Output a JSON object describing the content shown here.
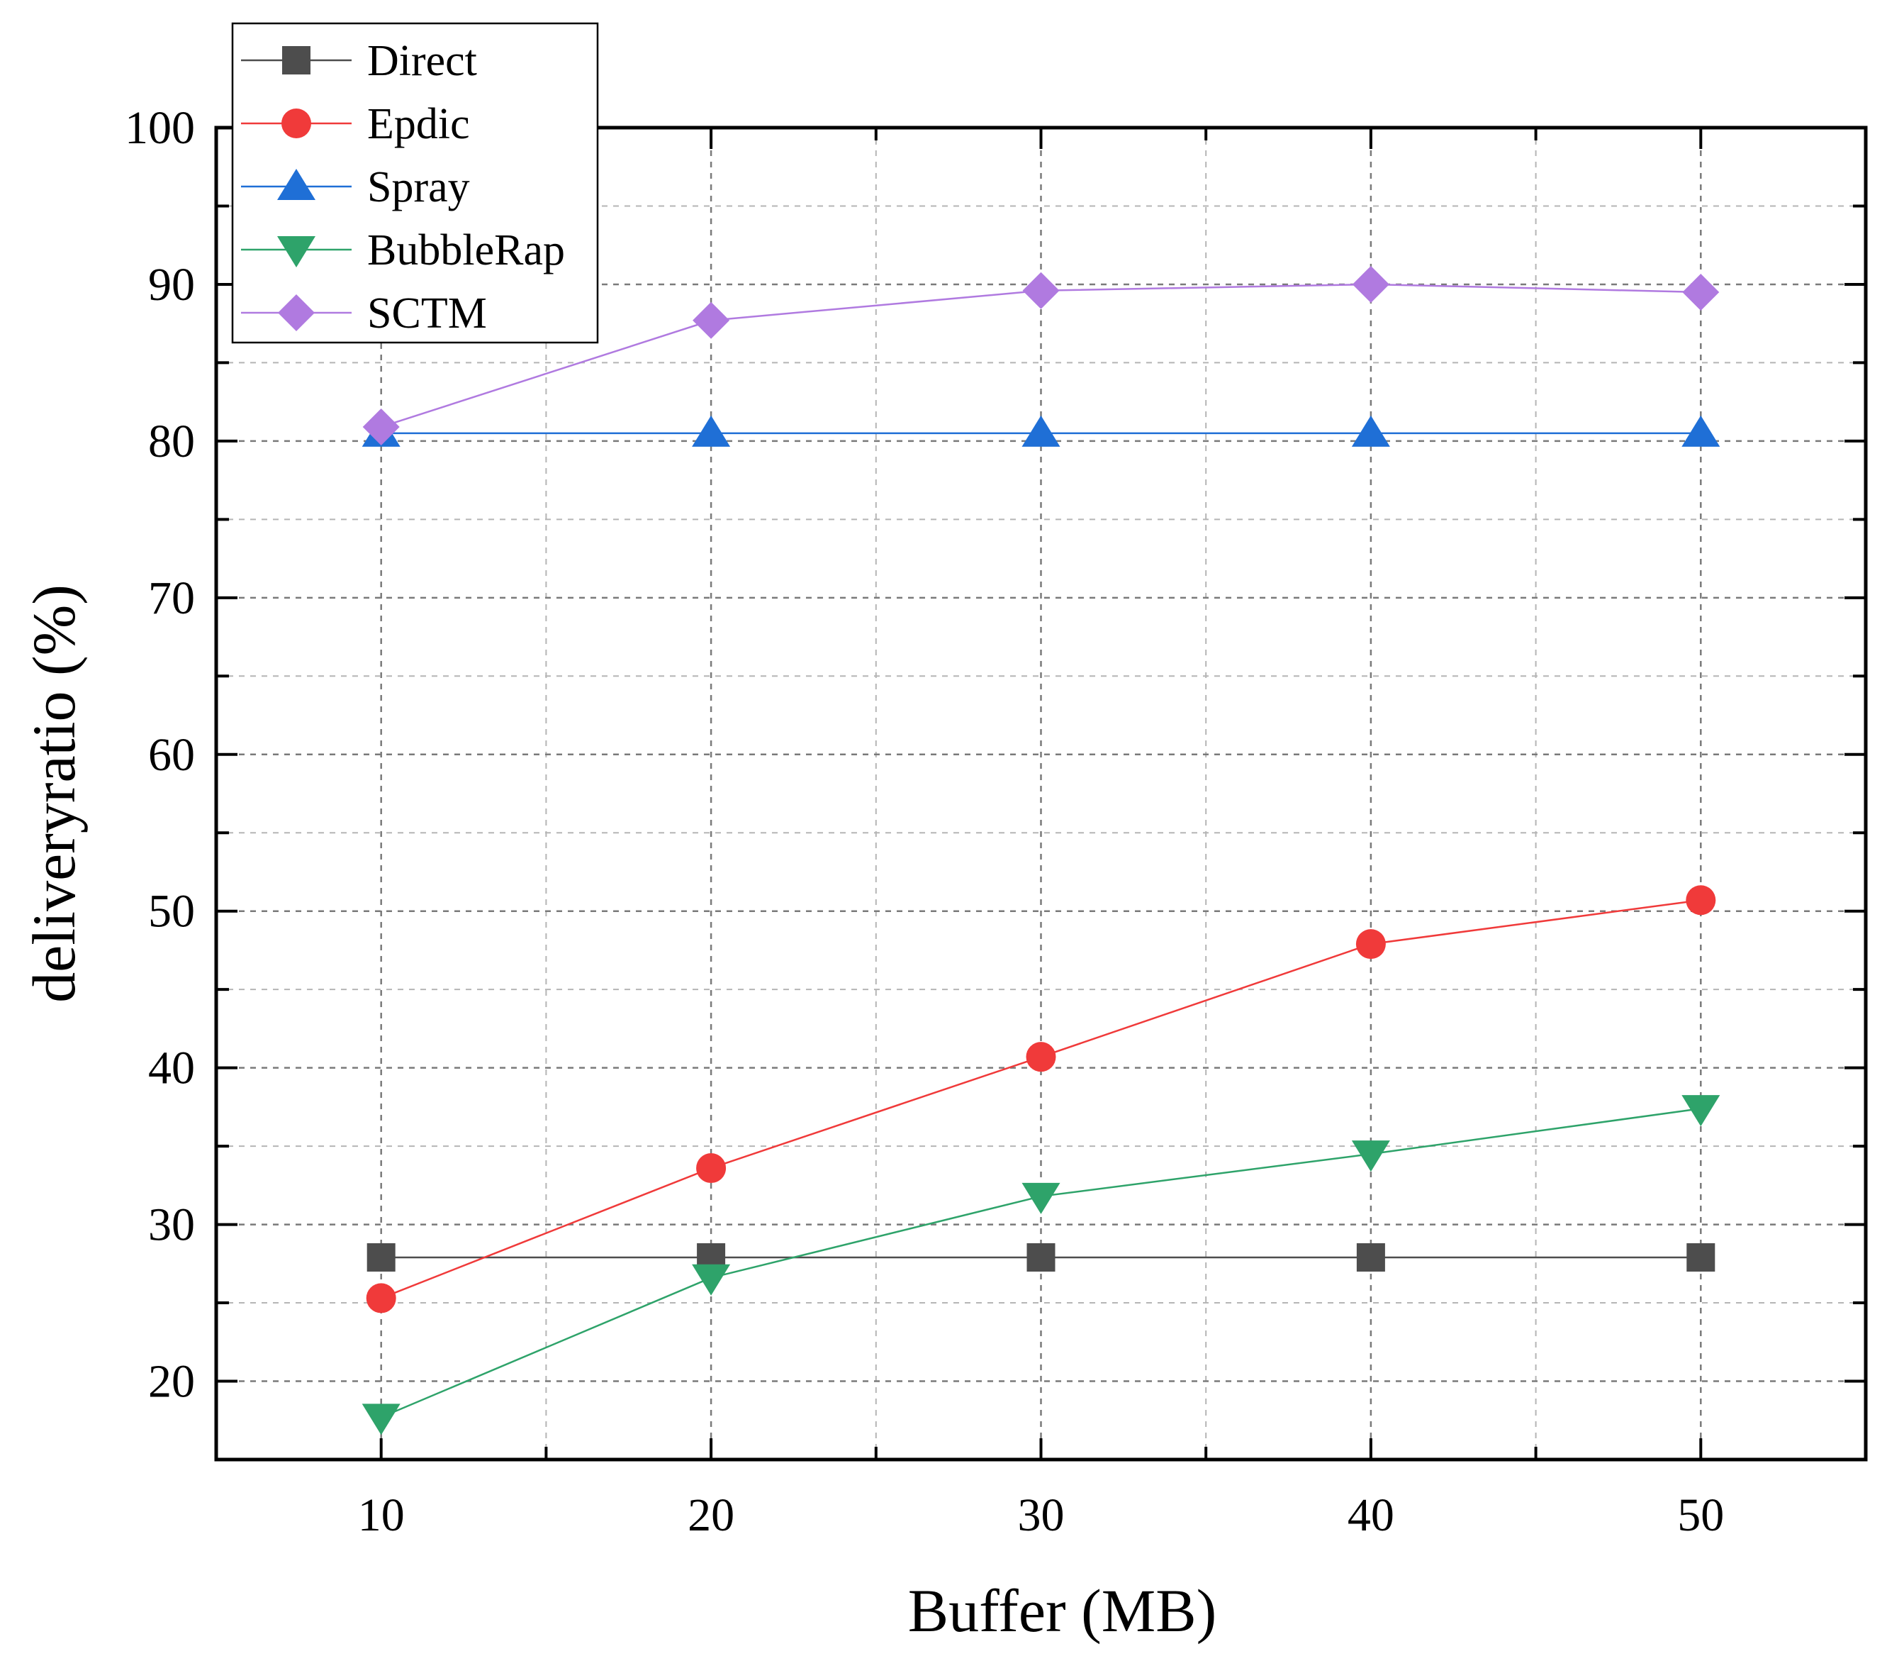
{
  "chart_data": {
    "type": "line",
    "xlabel": "Buffer (MB)",
    "ylabel": "deliveryratio (%)",
    "x": [
      10,
      20,
      30,
      40,
      50
    ],
    "xlim": [
      5,
      55
    ],
    "ylim": [
      15,
      100
    ],
    "x_ticks": [
      "10",
      "20",
      "30",
      "40",
      "50"
    ],
    "y_ticks": [
      "20",
      "30",
      "40",
      "50",
      "60",
      "70",
      "80",
      "90",
      "100"
    ],
    "grid": true,
    "legend_position": "top-left",
    "series": [
      {
        "name": "Direct",
        "marker": "square",
        "color": "#4d4d4d",
        "values": [
          27.9,
          27.9,
          27.9,
          27.9,
          27.9
        ]
      },
      {
        "name": "Epdic",
        "marker": "circle",
        "color": "#f03a3a",
        "values": [
          25.3,
          33.6,
          40.7,
          47.9,
          50.7
        ]
      },
      {
        "name": "Spray",
        "marker": "triangle-up",
        "color": "#1f6fd6",
        "values": [
          80.5,
          80.5,
          80.5,
          80.5,
          80.5
        ]
      },
      {
        "name": "BubbleRap",
        "marker": "triangle-down",
        "color": "#2ea36a",
        "values": [
          17.7,
          26.6,
          31.8,
          34.5,
          37.4
        ]
      },
      {
        "name": "SCTM",
        "marker": "diamond",
        "color": "#b07ae0",
        "values": [
          80.9,
          87.7,
          89.6,
          90.0,
          89.5
        ]
      }
    ]
  }
}
